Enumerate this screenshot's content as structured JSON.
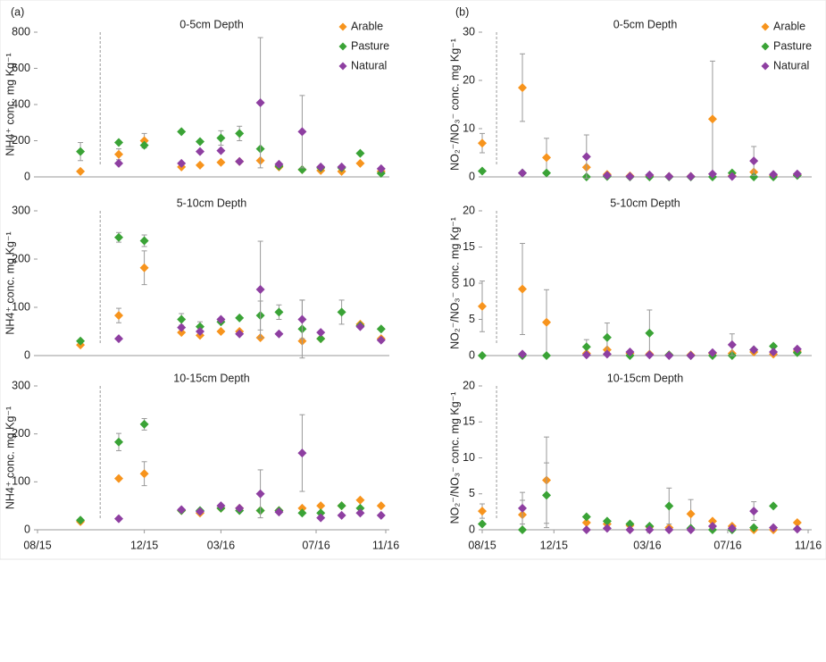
{
  "chart_data": [
    {
      "type": "scatter",
      "panel_label": "(a)",
      "title": "0-5cm Depth",
      "ylabel": "NH4⁺ conc. mg Kg⁻¹",
      "legend": "upper right",
      "marker_x": 2.7,
      "xlim": [
        0,
        15
      ],
      "ylim": [
        0,
        800
      ],
      "yticks": [
        0,
        200,
        400,
        600,
        800
      ],
      "x": [
        1.85,
        3.5,
        4.6,
        6.2,
        7.0,
        7.9,
        8.7,
        9.6,
        10.4,
        11.4,
        12.2,
        13.1,
        13.9,
        14.8
      ],
      "series": [
        {
          "name": "Arable",
          "color": "#f7941d",
          "values": [
            30,
            125,
            200,
            55,
            65,
            80,
            85,
            90,
            55,
            40,
            35,
            30,
            75,
            30
          ],
          "errors": [
            null,
            30,
            40,
            null,
            null,
            null,
            null,
            null,
            null,
            null,
            null,
            null,
            null,
            null
          ]
        },
        {
          "name": "Pasture",
          "color": "#3aa336",
          "values": [
            140,
            190,
            175,
            250,
            195,
            215,
            240,
            155,
            60,
            40,
            50,
            50,
            130,
            20
          ],
          "errors": [
            50,
            null,
            null,
            null,
            null,
            40,
            40,
            null,
            null,
            null,
            null,
            null,
            null,
            null
          ]
        },
        {
          "name": "Natural",
          "color": "#8e3fa1",
          "values": [
            null,
            75,
            null,
            75,
            140,
            145,
            85,
            410,
            70,
            250,
            55,
            55,
            null,
            45
          ],
          "errors": [
            null,
            null,
            null,
            null,
            null,
            null,
            null,
            360,
            null,
            200,
            null,
            null,
            null,
            null
          ]
        }
      ]
    },
    {
      "type": "scatter",
      "title": "5-10cm Depth",
      "ylabel": "NH4⁺ conc. mg Kg⁻¹",
      "marker_x": 2.7,
      "xlim": [
        0,
        15
      ],
      "ylim": [
        0,
        300
      ],
      "yticks": [
        0,
        100,
        200,
        300
      ],
      "x": [
        1.85,
        3.5,
        4.6,
        6.2,
        7.0,
        7.9,
        8.7,
        9.6,
        10.4,
        11.4,
        12.2,
        13.1,
        13.9,
        14.8
      ],
      "series": [
        {
          "color": "#f7941d",
          "values": [
            22,
            83,
            182,
            48,
            42,
            50,
            50,
            37,
            null,
            30,
            35,
            null,
            65,
            35
          ],
          "errors": [
            null,
            15,
            35,
            null,
            null,
            null,
            null,
            null,
            null,
            null,
            null,
            null,
            null,
            null
          ]
        },
        {
          "color": "#3aa336",
          "values": [
            30,
            245,
            238,
            75,
            60,
            70,
            78,
            83,
            90,
            55,
            35,
            90,
            62,
            55
          ],
          "errors": [
            null,
            10,
            12,
            12,
            10,
            null,
            null,
            30,
            15,
            60,
            null,
            25,
            null,
            null
          ]
        },
        {
          "color": "#8e3fa1",
          "values": [
            null,
            35,
            null,
            58,
            50,
            75,
            45,
            137,
            45,
            75,
            48,
            null,
            60,
            32
          ],
          "errors": [
            null,
            null,
            null,
            null,
            null,
            null,
            null,
            100,
            null,
            40,
            null,
            null,
            null,
            null
          ]
        }
      ]
    },
    {
      "type": "scatter",
      "title": "10-15cm Depth",
      "ylabel": "NH4⁺ conc. mg Kg⁻¹",
      "marker_x": 2.7,
      "xlim": [
        0,
        15
      ],
      "ylim": [
        0,
        300
      ],
      "yticks": [
        0,
        100,
        200,
        300
      ],
      "xticks": [
        {
          "value": 0,
          "label": "08/15"
        },
        {
          "value": 4.6,
          "label": "12/15"
        },
        {
          "value": 7.9,
          "label": "03/16"
        },
        {
          "value": 12.0,
          "label": "07/16"
        },
        {
          "value": 15,
          "label": "11/16"
        }
      ],
      "x": [
        1.85,
        3.5,
        4.6,
        6.2,
        7.0,
        7.9,
        8.7,
        9.6,
        10.4,
        11.4,
        12.2,
        13.1,
        13.9,
        14.8
      ],
      "series": [
        {
          "color": "#f7941d",
          "values": [
            17,
            107,
            117,
            40,
            35,
            45,
            45,
            40,
            40,
            45,
            50,
            50,
            62,
            50
          ],
          "errors": [
            null,
            null,
            25,
            null,
            null,
            null,
            null,
            null,
            null,
            null,
            null,
            null,
            null,
            null
          ]
        },
        {
          "color": "#3aa336",
          "values": [
            20,
            183,
            220,
            40,
            40,
            45,
            40,
            40,
            40,
            35,
            35,
            50,
            45,
            null
          ],
          "errors": [
            null,
            18,
            12,
            null,
            null,
            null,
            null,
            null,
            null,
            null,
            null,
            null,
            null,
            null
          ]
        },
        {
          "color": "#8e3fa1",
          "values": [
            null,
            23,
            null,
            42,
            38,
            50,
            45,
            75,
            37,
            160,
            25,
            30,
            35,
            30
          ],
          "errors": [
            null,
            null,
            null,
            null,
            null,
            null,
            null,
            50,
            null,
            80,
            null,
            null,
            null,
            null
          ]
        }
      ]
    },
    {
      "type": "scatter",
      "panel_label": "(b)",
      "title": "0-5cm Depth",
      "ylabel": "NO₂⁻/NO₃⁻ conc. mg Kg⁻¹",
      "legend": "upper right",
      "marker_x": 0.66,
      "xlim": [
        0,
        15
      ],
      "ylim": [
        0,
        30
      ],
      "yticks": [
        0,
        10,
        20,
        30
      ],
      "x": [
        0,
        1.85,
        2.96,
        4.8,
        5.75,
        6.8,
        7.7,
        8.6,
        9.6,
        10.6,
        11.5,
        12.5,
        13.4,
        14.5
      ],
      "series": [
        {
          "name": "Arable",
          "color": "#f7941d",
          "values": [
            7,
            18.5,
            4,
            2,
            0.5,
            0.2,
            0.2,
            0.1,
            0.1,
            12,
            0.2,
            1,
            0.3,
            0.5
          ],
          "errors": [
            2,
            7,
            4,
            null,
            null,
            null,
            null,
            null,
            null,
            12,
            null,
            null,
            null,
            null
          ]
        },
        {
          "name": "Pasture",
          "color": "#3aa336",
          "values": [
            1.2,
            0.8,
            0.8,
            0,
            0.1,
            0,
            0,
            0,
            0,
            0,
            0.8,
            0,
            0,
            0.3
          ],
          "errors": [
            null,
            null,
            null,
            null,
            null,
            null,
            null,
            null,
            null,
            null,
            null,
            null,
            null,
            null
          ]
        },
        {
          "name": "Natural",
          "color": "#8e3fa1",
          "values": [
            null,
            0.8,
            null,
            4.2,
            0.3,
            0.1,
            0.4,
            0.1,
            0.1,
            0.6,
            0.1,
            3.3,
            0.5,
            0.6
          ],
          "errors": [
            null,
            null,
            null,
            4.5,
            null,
            null,
            null,
            null,
            null,
            null,
            null,
            3,
            null,
            null
          ]
        }
      ]
    },
    {
      "type": "scatter",
      "title": "5-10cm Depth",
      "ylabel": "NO₂⁻/NO₃⁻ conc. mg Kg⁻¹",
      "marker_x": 0.66,
      "xlim": [
        0,
        15
      ],
      "ylim": [
        0,
        20
      ],
      "yticks": [
        0,
        5,
        10,
        15,
        20
      ],
      "x": [
        0,
        1.85,
        2.96,
        4.8,
        5.75,
        6.8,
        7.7,
        8.6,
        9.6,
        10.6,
        11.5,
        12.5,
        13.4,
        14.5
      ],
      "series": [
        {
          "color": "#f7941d",
          "values": [
            6.8,
            9.2,
            4.6,
            0.3,
            0.8,
            0.3,
            0.2,
            0.1,
            0.1,
            0.3,
            0.3,
            0.5,
            0.2,
            0.6
          ],
          "errors": [
            3.5,
            6.3,
            4.5,
            null,
            null,
            null,
            null,
            null,
            null,
            null,
            null,
            null,
            null,
            null
          ]
        },
        {
          "color": "#3aa336",
          "values": [
            0,
            0,
            0,
            1.2,
            2.5,
            0,
            3.1,
            0.1,
            0,
            0,
            0,
            0.8,
            1.3,
            0.4
          ],
          "errors": [
            null,
            null,
            null,
            1,
            2,
            null,
            3.2,
            null,
            null,
            null,
            null,
            null,
            null,
            null
          ]
        },
        {
          "color": "#8e3fa1",
          "values": [
            null,
            0.2,
            null,
            0.1,
            0.2,
            0.5,
            0.1,
            0,
            0,
            0.4,
            1.5,
            0.8,
            0.5,
            0.9
          ],
          "errors": [
            null,
            null,
            null,
            null,
            null,
            null,
            null,
            null,
            null,
            null,
            1.5,
            null,
            null,
            null
          ]
        }
      ]
    },
    {
      "type": "scatter",
      "title": "10-15cm Depth",
      "ylabel": "NO₂⁻/NO₃⁻ conc. mg Kg⁻¹",
      "marker_x": 0.66,
      "xlim": [
        0,
        15
      ],
      "ylim": [
        0,
        20
      ],
      "yticks": [
        0,
        5,
        10,
        15,
        20
      ],
      "xticks": [
        {
          "value": 0,
          "label": "08/15"
        },
        {
          "value": 3.3,
          "label": "12/15"
        },
        {
          "value": 7.6,
          "label": "03/16"
        },
        {
          "value": 11.3,
          "label": "07/16"
        },
        {
          "value": 15,
          "label": "11/16"
        }
      ],
      "x": [
        0,
        1.85,
        2.96,
        4.8,
        5.75,
        6.8,
        7.7,
        8.6,
        9.6,
        10.6,
        11.5,
        12.5,
        13.4,
        14.5
      ],
      "series": [
        {
          "color": "#f7941d",
          "values": [
            2.6,
            2.1,
            6.9,
            1,
            0.8,
            0.6,
            0.4,
            0.3,
            2.2,
            1.2,
            0.5,
            0,
            0,
            1
          ],
          "errors": [
            1,
            2,
            6,
            null,
            null,
            null,
            null,
            null,
            2,
            null,
            null,
            null,
            null,
            null
          ]
        },
        {
          "color": "#3aa336",
          "values": [
            0.8,
            0,
            4.8,
            1.8,
            1.2,
            0.8,
            0.5,
            3.3,
            0.2,
            0,
            0,
            0.3,
            3.3,
            null
          ],
          "errors": [
            null,
            null,
            4.5,
            null,
            null,
            null,
            null,
            2.5,
            null,
            null,
            null,
            null,
            null,
            null
          ]
        },
        {
          "color": "#8e3fa1",
          "values": [
            null,
            3,
            null,
            0,
            0.2,
            0,
            0,
            0,
            0,
            0.5,
            0.2,
            2.6,
            0.3,
            0.1
          ],
          "errors": [
            null,
            2.2,
            null,
            null,
            null,
            null,
            null,
            null,
            null,
            null,
            null,
            1.3,
            null,
            null
          ]
        }
      ]
    }
  ]
}
